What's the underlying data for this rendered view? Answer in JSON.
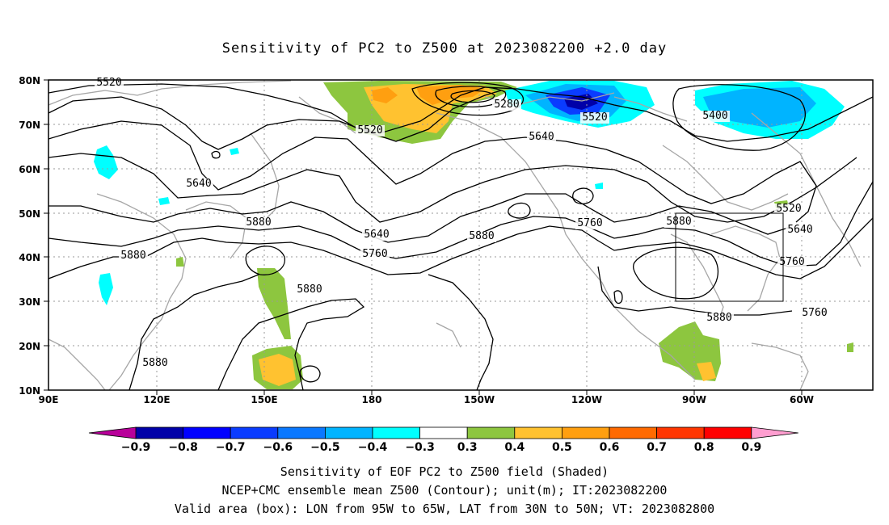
{
  "title": "Sensitivity of PC2 to Z500 at 2023082200 +2.0 day",
  "map": {
    "lon_labels": [
      "90E",
      "120E",
      "150E",
      "180",
      "150W",
      "120W",
      "90W",
      "60W"
    ],
    "lat_labels": [
      "80N",
      "70N",
      "60N",
      "50N",
      "40N",
      "30N",
      "20N",
      "10N"
    ],
    "contour_labels": [
      "5520",
      "5280",
      "5520",
      "5400",
      "5520",
      "5640",
      "5640",
      "5880",
      "5640",
      "5760",
      "5760",
      "5880",
      "5880",
      "5880",
      "5760",
      "5880",
      "5520",
      "5640",
      "5760",
      "5880",
      "5880"
    ],
    "valid_box": {
      "lon_from": "95W",
      "lon_to": "65W",
      "lat_from": "30N",
      "lat_to": "50N"
    }
  },
  "colorbar": {
    "labels": [
      "−0.9",
      "−0.8",
      "−0.7",
      "−0.6",
      "−0.5",
      "−0.4",
      "−0.3",
      "0.3",
      "0.4",
      "0.5",
      "0.6",
      "0.7",
      "0.8",
      "0.9"
    ],
    "colors": [
      "#0000a8",
      "#0000ff",
      "#0a3cff",
      "#0a78ff",
      "#00b4ff",
      "#00ffff",
      "#ffffff",
      "#8dc63f",
      "#ffc230",
      "#ff9f10",
      "#ff6a00",
      "#ff3600",
      "#ff0000"
    ],
    "left_tip": "#b8009a",
    "right_tip": "#ff9ed0"
  },
  "captions": {
    "line1": "Sensitivity of EOF PC2 to Z500 field (Shaded)",
    "line2": "NCEP+CMC ensemble mean Z500 (Contour); unit(m); IT:2023082200",
    "line3": "Valid area (box): LON from 95W to 65W, LAT from 30N to 50N; VT: 2023082800"
  }
}
